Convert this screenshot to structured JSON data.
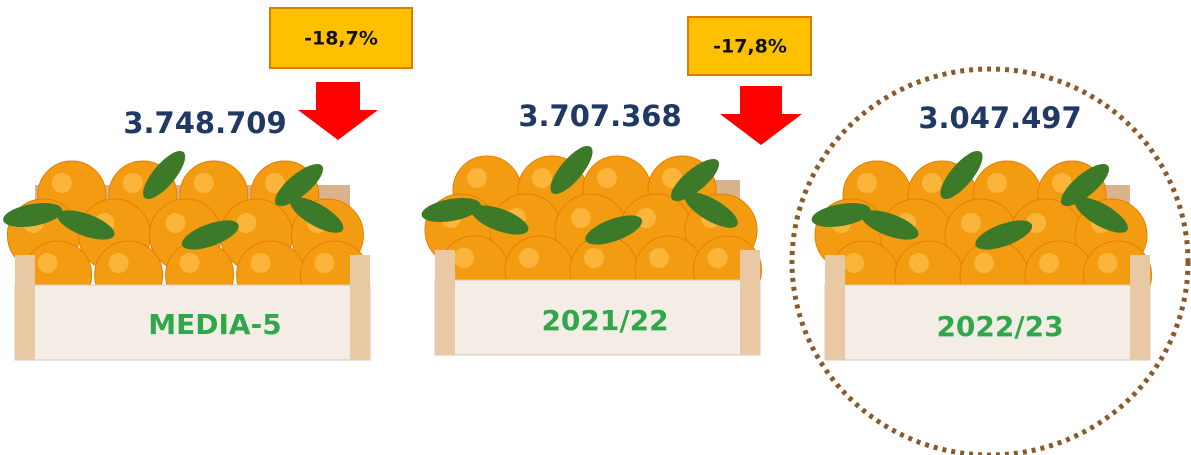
{
  "items": [
    {
      "value": "3.748.709",
      "label": "MEDIA-5"
    },
    {
      "value": "3.707.368",
      "label": "2021/22"
    },
    {
      "value": "3.047.497",
      "label": "2022/23"
    }
  ],
  "changes": [
    "-18,7%",
    "-17,8%"
  ]
}
